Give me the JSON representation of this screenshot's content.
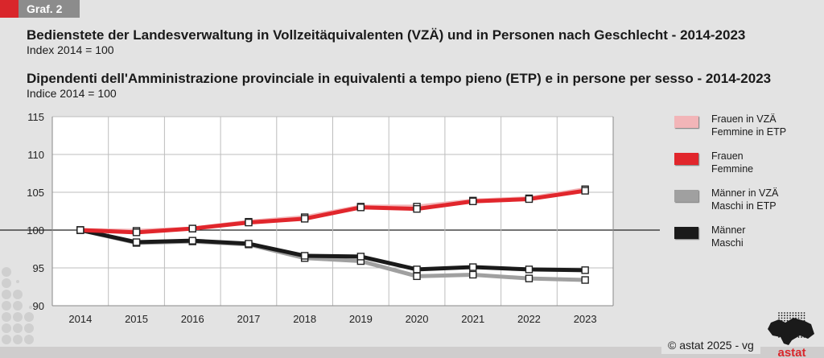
{
  "header": {
    "tag": "Graf. 2",
    "title_de": "Bedienstete der Landesverwaltung in Vollzeitäquivalenten (VZÄ) und in Personen nach Geschlecht - 2014-2023",
    "subtitle_de": "Index 2014 = 100",
    "title_it": "Dipendenti dell'Amministrazione provinciale in equivalenti a tempo pieno (ETP) e in persone per sesso - 2014-2023",
    "subtitle_it": "Indice 2014 = 100"
  },
  "footer": {
    "copyright": "© astat 2025 - vg",
    "logo_text": "astat"
  },
  "chart_data": {
    "type": "line",
    "title": "Bedienstete der Landesverwaltung in Vollzeitäquivalenten (VZÄ) und in Personen nach Geschlecht - 2014-2023 / Dipendenti dell'Amministrazione provinciale in equivalenti a tempo pieno (ETP) e in persone per sesso - 2014-2023",
    "subtitle": "Index 2014 = 100 / Indice 2014 = 100",
    "xlabel": "",
    "ylabel": "",
    "categories": [
      "2014",
      "2015",
      "2016",
      "2017",
      "2018",
      "2019",
      "2020",
      "2021",
      "2022",
      "2023"
    ],
    "ylim": [
      90,
      115
    ],
    "yticks": [
      90,
      95,
      100,
      105,
      110,
      115
    ],
    "reference_line": 100,
    "grid": true,
    "legend_position": "right",
    "series": [
      {
        "name": "Frauen in VZÄ",
        "name_it": "Femmine in ETP",
        "color": "#f2b5b8",
        "values": [
          100,
          99.9,
          100.2,
          101.1,
          101.7,
          103.1,
          103.1,
          103.9,
          104.2,
          105.4
        ]
      },
      {
        "name": "Frauen",
        "name_it": "Femmine",
        "color": "#e1262c",
        "values": [
          100,
          99.7,
          100.2,
          101.0,
          101.5,
          103.0,
          102.8,
          103.8,
          104.1,
          105.2
        ]
      },
      {
        "name": "Männer in VZÄ",
        "name_it": "Maschi in ETP",
        "color": "#a0a0a0",
        "values": [
          100,
          98.3,
          98.5,
          98.1,
          96.3,
          95.9,
          93.9,
          94.1,
          93.6,
          93.4
        ]
      },
      {
        "name": "Männer",
        "name_it": "Maschi",
        "color": "#1a1a1a",
        "values": [
          100,
          98.4,
          98.6,
          98.2,
          96.6,
          96.5,
          94.8,
          95.1,
          94.8,
          94.7
        ]
      }
    ]
  }
}
